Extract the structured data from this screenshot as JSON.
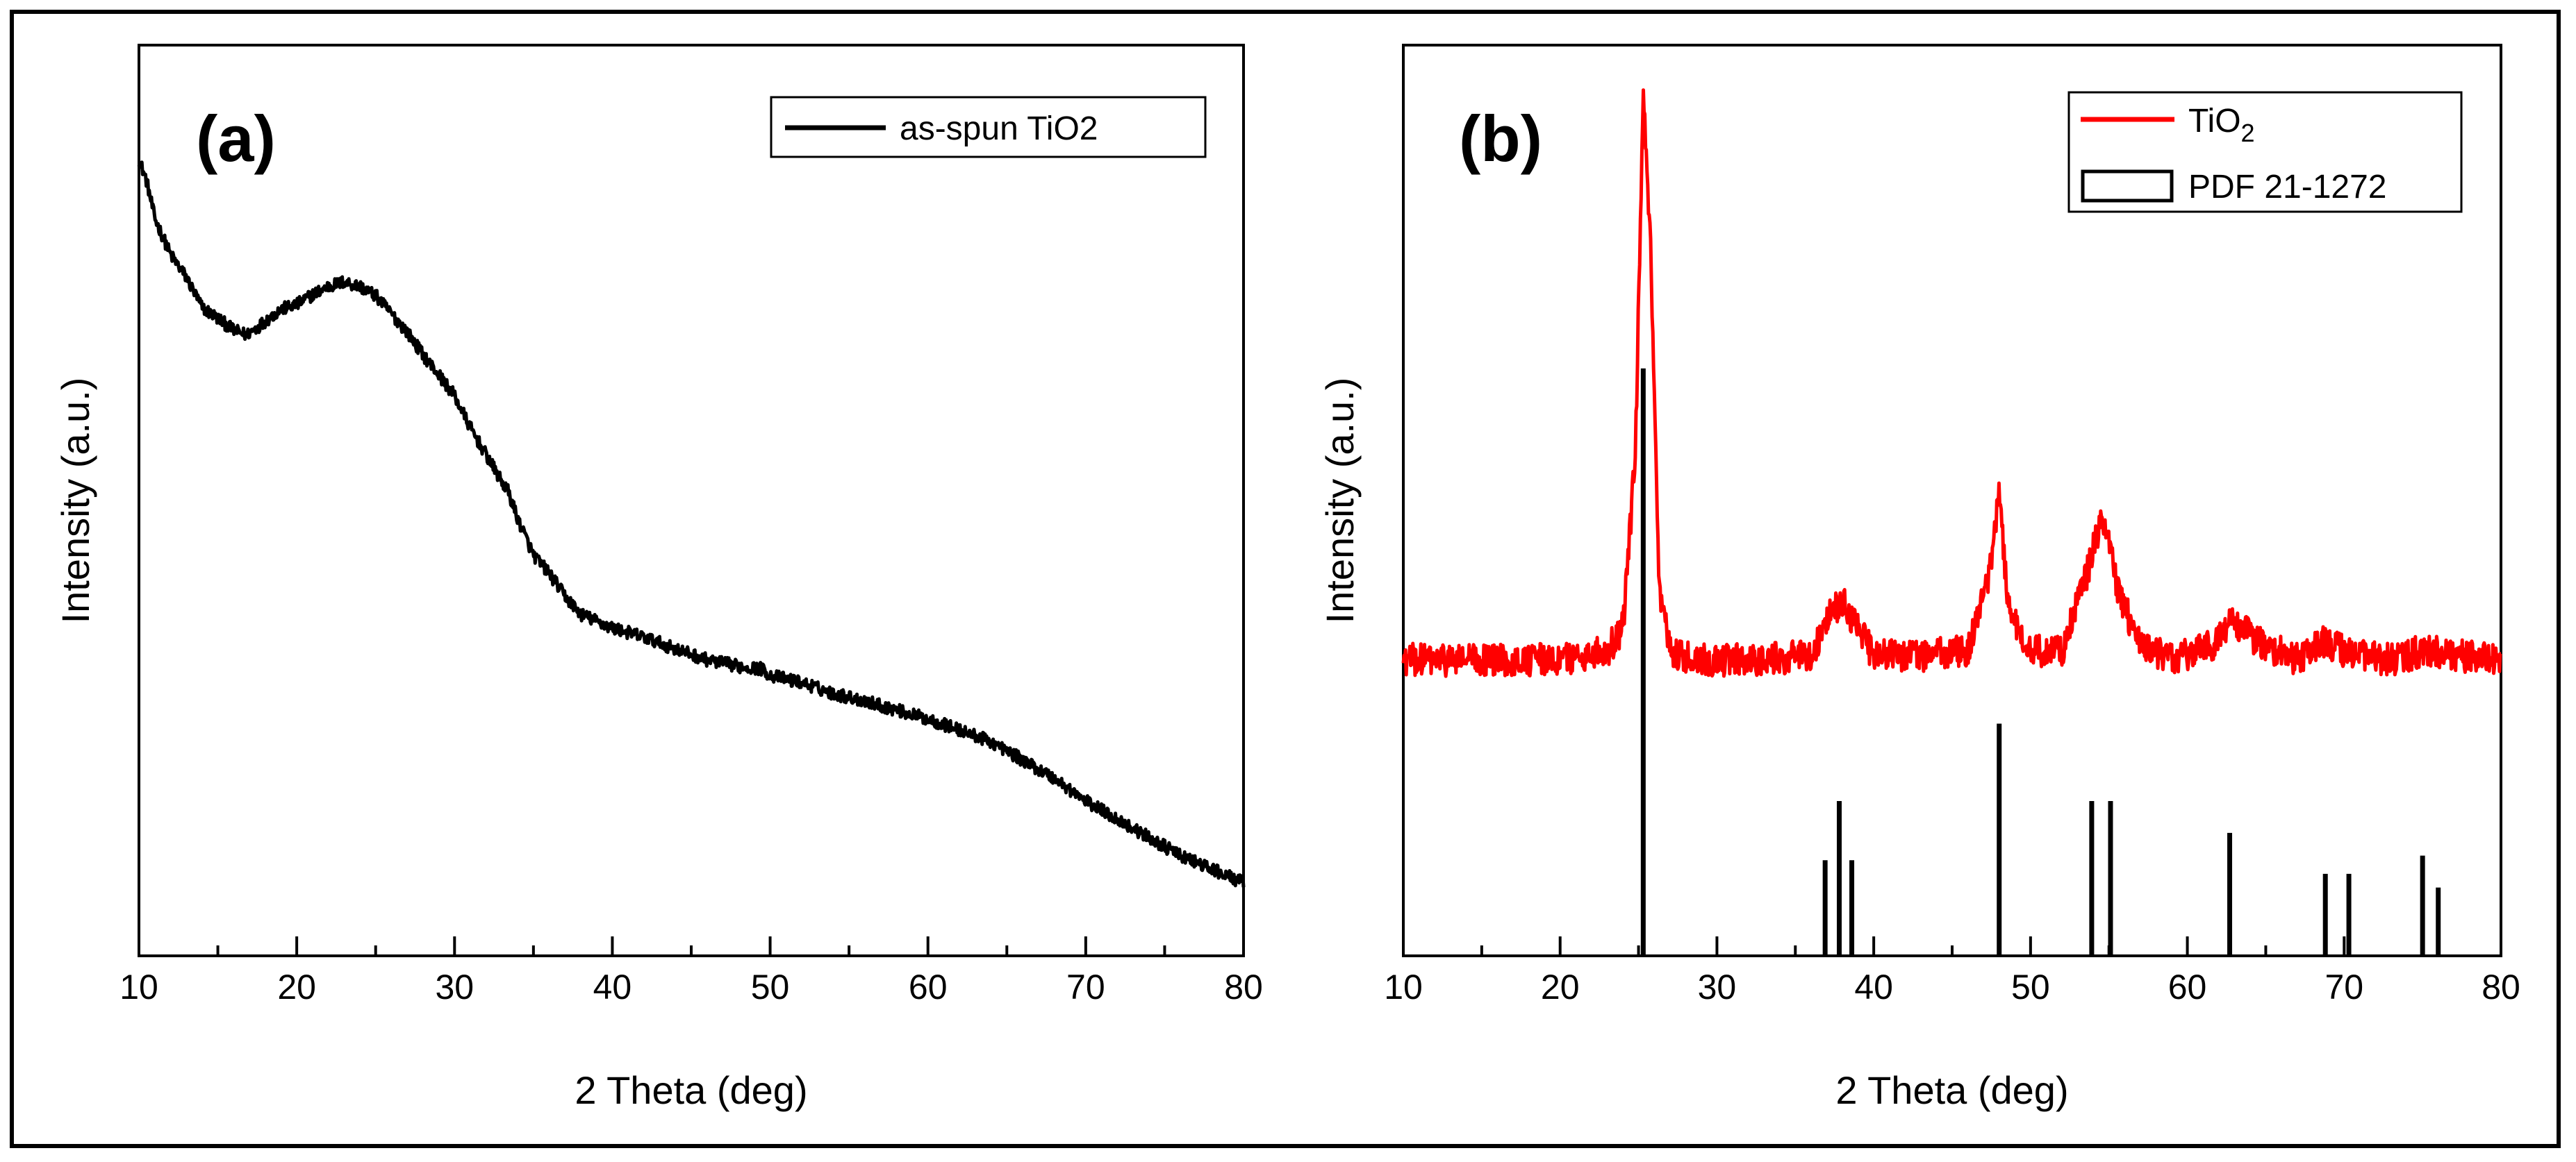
{
  "chart_data": [
    {
      "type": "line",
      "panel_label": "(a)",
      "xlabel": "2 Theta (deg)",
      "ylabel": "Intensity (a.u.)",
      "xlim": [
        10,
        80
      ],
      "ylim": [
        0,
        1
      ],
      "xticks": [
        10,
        20,
        30,
        40,
        50,
        60,
        70,
        80
      ],
      "legend": {
        "position": "top-right",
        "entries": [
          {
            "label": "as-spun TiO2",
            "color": "#000000",
            "kind": "line"
          }
        ]
      },
      "series": [
        {
          "name": "as-spun TiO2",
          "color": "#000000",
          "noise": 0.007,
          "x": [
            10,
            10.5,
            11,
            12,
            13,
            14,
            15,
            16,
            16.8,
            17.5,
            18,
            19,
            20,
            21,
            22,
            23,
            24,
            25,
            26,
            27,
            28,
            29,
            30,
            31,
            32,
            33,
            33.4,
            34,
            35,
            36,
            37,
            38,
            40,
            42,
            44,
            46,
            48,
            49.5,
            50,
            52,
            54,
            56,
            58,
            60,
            62,
            64,
            66,
            68,
            70,
            72,
            74,
            76,
            78,
            80
          ],
          "y": [
            0.875,
            0.85,
            0.81,
            0.77,
            0.745,
            0.712,
            0.7,
            0.687,
            0.682,
            0.69,
            0.697,
            0.71,
            0.715,
            0.726,
            0.735,
            0.74,
            0.735,
            0.725,
            0.705,
            0.685,
            0.66,
            0.638,
            0.615,
            0.58,
            0.55,
            0.52,
            0.51,
            0.48,
            0.44,
            0.42,
            0.395,
            0.375,
            0.36,
            0.35,
            0.337,
            0.325,
            0.318,
            0.315,
            0.308,
            0.3,
            0.288,
            0.28,
            0.27,
            0.26,
            0.248,
            0.235,
            0.215,
            0.195,
            0.17,
            0.15,
            0.13,
            0.11,
            0.095,
            0.08
          ]
        }
      ]
    },
    {
      "type": "line",
      "panel_label": "(b)",
      "xlabel": "2 Theta (deg)",
      "ylabel": "Intensity (a.u.)",
      "xlim": [
        10,
        80
      ],
      "ylim": [
        0,
        1
      ],
      "xticks": [
        10,
        20,
        30,
        40,
        50,
        60,
        70,
        80
      ],
      "legend": {
        "position": "top-right",
        "entries": [
          {
            "label": "TiO",
            "subscript": "2",
            "color": "#ff0000",
            "kind": "line"
          },
          {
            "label": "PDF 21-1272",
            "color": "#000000",
            "kind": "box"
          }
        ]
      },
      "series": [
        {
          "name": "TiO2",
          "color": "#ff0000",
          "noise": 0.018,
          "x": [
            10,
            15,
            20,
            23,
            24,
            24.8,
            25.3,
            25.8,
            26.3,
            27,
            28,
            30,
            33,
            36,
            37.2,
            38,
            38.8,
            40,
            43,
            46,
            47.3,
            48,
            48.6,
            50,
            52,
            53.6,
            54.6,
            55.5,
            57,
            59,
            61.5,
            63,
            64.5,
            67,
            68.8,
            70.5,
            73,
            75,
            77,
            80
          ],
          "y": [
            0.325,
            0.325,
            0.325,
            0.335,
            0.36,
            0.55,
            0.945,
            0.76,
            0.4,
            0.335,
            0.327,
            0.325,
            0.325,
            0.33,
            0.375,
            0.39,
            0.365,
            0.33,
            0.33,
            0.335,
            0.41,
            0.51,
            0.38,
            0.335,
            0.335,
            0.42,
            0.485,
            0.405,
            0.34,
            0.325,
            0.34,
            0.368,
            0.345,
            0.325,
            0.345,
            0.33,
            0.325,
            0.335,
            0.33,
            0.325
          ]
        }
      ],
      "reference_lines": {
        "name": "PDF 21-1272",
        "color": "#000000",
        "positions": [
          25.3,
          36.9,
          37.8,
          38.6,
          48.0,
          53.9,
          55.1,
          62.7,
          68.8,
          70.3,
          75.0,
          76.0
        ],
        "intensities": [
          0.645,
          0.105,
          0.17,
          0.105,
          0.255,
          0.17,
          0.17,
          0.135,
          0.09,
          0.09,
          0.11,
          0.075
        ]
      }
    }
  ]
}
